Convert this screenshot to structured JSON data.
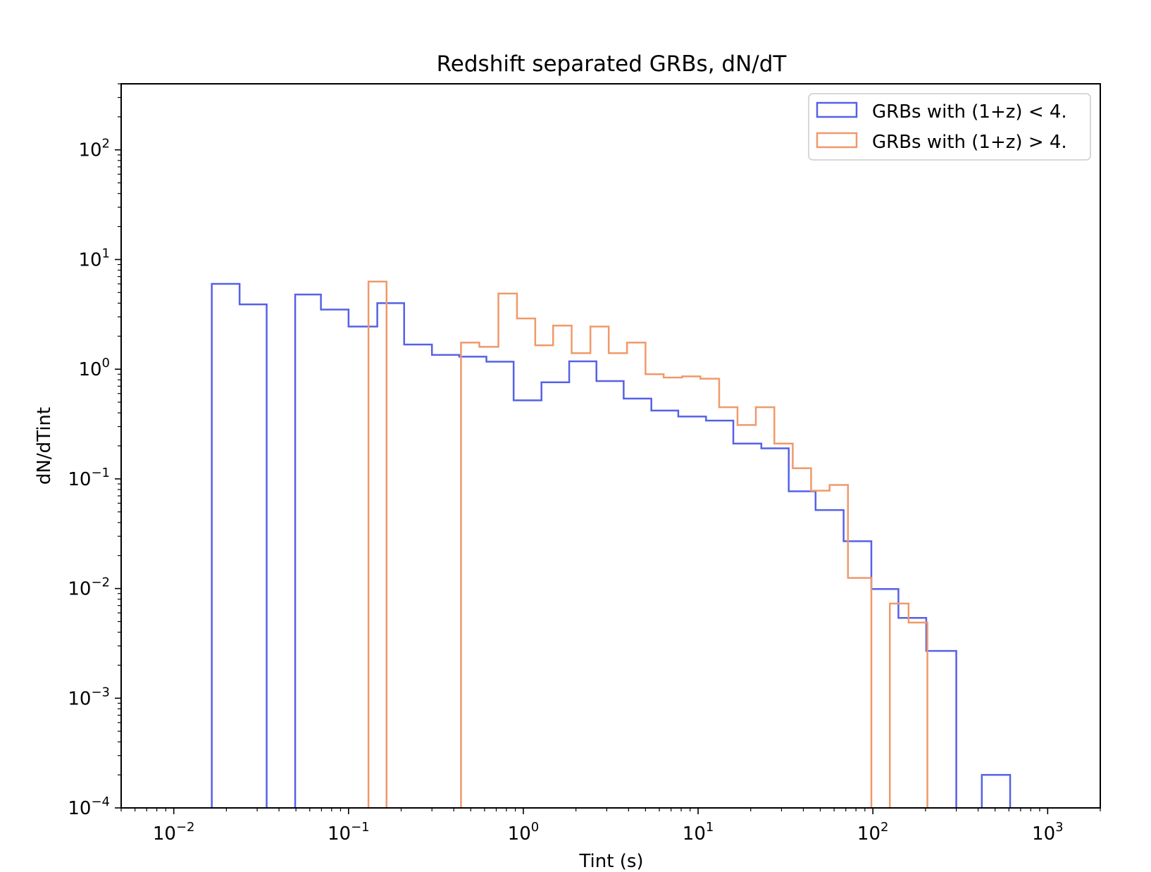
{
  "chart_data": {
    "type": "histogram-step",
    "title": "Redshift separated GRBs, dN/dT",
    "xlabel": "Tint (s)",
    "ylabel": "dN/dTint",
    "xscale": "log",
    "yscale": "log",
    "xlim": [
      0.005,
      2000
    ],
    "ylim": [
      0.0001,
      400
    ],
    "x_ticks": [
      {
        "base": "10",
        "exp": "−2",
        "value": 0.01
      },
      {
        "base": "10",
        "exp": "−1",
        "value": 0.1
      },
      {
        "base": "10",
        "exp": "0",
        "value": 1
      },
      {
        "base": "10",
        "exp": "1",
        "value": 10
      },
      {
        "base": "10",
        "exp": "2",
        "value": 100
      },
      {
        "base": "10",
        "exp": "3",
        "value": 1000
      }
    ],
    "y_ticks": [
      {
        "base": "10",
        "exp": "−4",
        "value": 0.0001
      },
      {
        "base": "10",
        "exp": "−3",
        "value": 0.001
      },
      {
        "base": "10",
        "exp": "−2",
        "value": 0.01
      },
      {
        "base": "10",
        "exp": "−1",
        "value": 0.1
      },
      {
        "base": "10",
        "exp": "0",
        "value": 1
      },
      {
        "base": "10",
        "exp": "1",
        "value": 10
      },
      {
        "base": "10",
        "exp": "2",
        "value": 100
      }
    ],
    "grid": false,
    "legend_position": "top-right",
    "series": [
      {
        "name": "GRBs with (1+z) < 4.",
        "color": "#5561e6",
        "bins": [
          {
            "left": 0.0165,
            "right": 0.0238,
            "value": 6.0
          },
          {
            "left": 0.0238,
            "right": 0.034,
            "value": 3.9
          },
          {
            "left": 0.0495,
            "right": 0.0695,
            "value": 4.8
          },
          {
            "left": 0.0695,
            "right": 0.1,
            "value": 3.5
          },
          {
            "left": 0.1,
            "right": 0.146,
            "value": 2.45
          },
          {
            "left": 0.146,
            "right": 0.208,
            "value": 4.0
          },
          {
            "left": 0.208,
            "right": 0.3,
            "value": 1.68
          },
          {
            "left": 0.3,
            "right": 0.43,
            "value": 1.35
          },
          {
            "left": 0.43,
            "right": 0.615,
            "value": 1.3
          },
          {
            "left": 0.615,
            "right": 0.88,
            "value": 1.17
          },
          {
            "left": 0.88,
            "right": 1.27,
            "value": 0.52
          },
          {
            "left": 1.27,
            "right": 1.83,
            "value": 0.76
          },
          {
            "left": 1.83,
            "right": 2.62,
            "value": 1.18
          },
          {
            "left": 2.62,
            "right": 3.75,
            "value": 0.78
          },
          {
            "left": 3.75,
            "right": 5.4,
            "value": 0.54
          },
          {
            "left": 5.4,
            "right": 7.7,
            "value": 0.42
          },
          {
            "left": 7.7,
            "right": 11.1,
            "value": 0.37
          },
          {
            "left": 11.1,
            "right": 15.9,
            "value": 0.34
          },
          {
            "left": 15.9,
            "right": 23.0,
            "value": 0.21
          },
          {
            "left": 23.0,
            "right": 33.0,
            "value": 0.19
          },
          {
            "left": 33.0,
            "right": 47.0,
            "value": 0.077
          },
          {
            "left": 47.0,
            "right": 68.0,
            "value": 0.052
          },
          {
            "left": 68.0,
            "right": 98.0,
            "value": 0.027
          },
          {
            "left": 98.0,
            "right": 140,
            "value": 0.0099
          },
          {
            "left": 140,
            "right": 202,
            "value": 0.0054
          },
          {
            "left": 202,
            "right": 300,
            "value": 0.0027
          },
          {
            "left": 420,
            "right": 610,
            "value": 0.0002
          }
        ]
      },
      {
        "name": "GRBs with (1+z) > 4.",
        "color": "#f0996a",
        "bins": [
          {
            "left": 0.13,
            "right": 0.165,
            "value": 6.3
          },
          {
            "left": 0.44,
            "right": 0.56,
            "value": 1.75
          },
          {
            "left": 0.56,
            "right": 0.72,
            "value": 1.6
          },
          {
            "left": 0.72,
            "right": 0.92,
            "value": 4.9
          },
          {
            "left": 0.92,
            "right": 1.17,
            "value": 2.9
          },
          {
            "left": 1.17,
            "right": 1.48,
            "value": 1.65
          },
          {
            "left": 1.48,
            "right": 1.89,
            "value": 2.5
          },
          {
            "left": 1.89,
            "right": 2.42,
            "value": 1.4
          },
          {
            "left": 2.42,
            "right": 3.08,
            "value": 2.45
          },
          {
            "left": 3.08,
            "right": 3.92,
            "value": 1.4
          },
          {
            "left": 3.92,
            "right": 5.0,
            "value": 1.75
          },
          {
            "left": 5.0,
            "right": 6.35,
            "value": 0.9
          },
          {
            "left": 6.35,
            "right": 8.1,
            "value": 0.84
          },
          {
            "left": 8.1,
            "right": 10.3,
            "value": 0.86
          },
          {
            "left": 10.3,
            "right": 13.2,
            "value": 0.82
          },
          {
            "left": 13.2,
            "right": 16.8,
            "value": 0.45
          },
          {
            "left": 16.8,
            "right": 21.4,
            "value": 0.31
          },
          {
            "left": 21.4,
            "right": 27.3,
            "value": 0.45
          },
          {
            "left": 27.3,
            "right": 34.8,
            "value": 0.21
          },
          {
            "left": 34.8,
            "right": 44.3,
            "value": 0.125
          },
          {
            "left": 44.3,
            "right": 56.5,
            "value": 0.078
          },
          {
            "left": 56.5,
            "right": 72.0,
            "value": 0.088
          },
          {
            "left": 72.0,
            "right": 98.0,
            "value": 0.0125
          },
          {
            "left": 125,
            "right": 160,
            "value": 0.0073
          },
          {
            "left": 160,
            "right": 205,
            "value": 0.0049
          }
        ]
      }
    ]
  }
}
